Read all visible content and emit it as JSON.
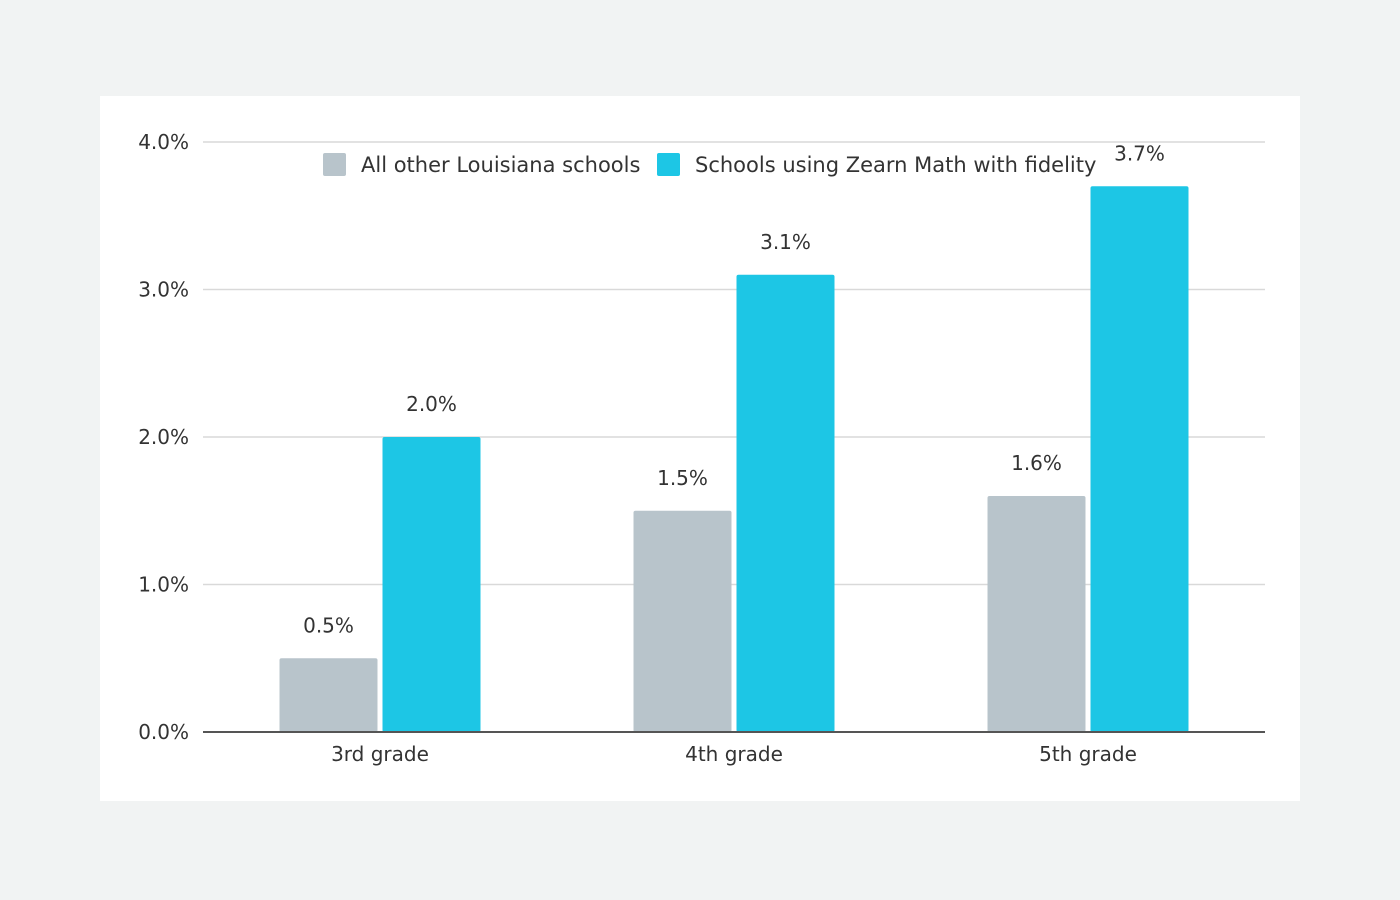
{
  "chart_data": {
    "type": "bar",
    "title": "",
    "xlabel": "",
    "ylabel": "",
    "categories": [
      "3rd grade",
      "4th grade",
      "5th grade"
    ],
    "series": [
      {
        "name": "All other Louisiana schools",
        "color": "#b8c4cb",
        "values": [
          0.5,
          1.5,
          1.6
        ],
        "labels": [
          "0.5%",
          "1.5%",
          "1.6%"
        ]
      },
      {
        "name": "Schools using Zearn Math with fidelity",
        "color": "#1dc6e5",
        "values": [
          2.0,
          3.1,
          3.7
        ],
        "labels": [
          "2.0%",
          "3.1%",
          "3.7%"
        ]
      }
    ],
    "ylim": [
      0,
      4
    ],
    "yticks": [
      0,
      1,
      2,
      3,
      4
    ],
    "ytick_labels": [
      "0.0%",
      "1.0%",
      "2.0%",
      "3.0%",
      "4.0%"
    ],
    "grid": true,
    "legend_position": "top-center"
  }
}
